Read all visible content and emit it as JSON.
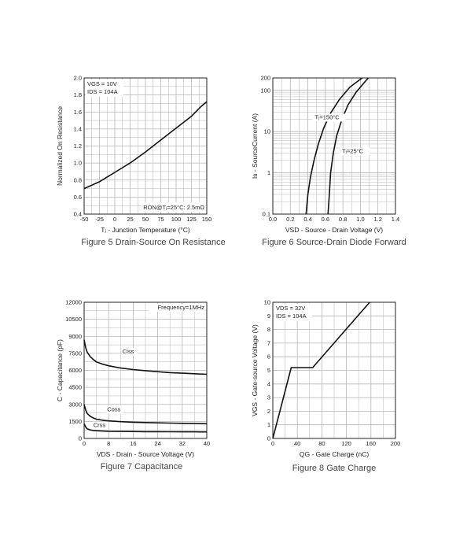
{
  "colors": {
    "background": "#ffffff",
    "curve": "#111111",
    "grid": "#b5b5b5",
    "frame": "#222222"
  },
  "chart_data": [
    {
      "type": "line",
      "figure": "Figure 5",
      "caption": "Figure 5 Drain-Source On Resistance",
      "xlabel": "Tⱼ - Junction Temperature (°C)",
      "ylabel": "Normalized On Resistance",
      "xlim": [
        -50,
        150
      ],
      "ylim": [
        0.4,
        2.0
      ],
      "xticks": [
        -50,
        -25,
        0,
        25,
        50,
        75,
        100,
        125,
        150
      ],
      "xticklabels": [
        "-50",
        "-25",
        "0",
        "25",
        "50",
        "75",
        "100",
        "125",
        "150"
      ],
      "yticks": [
        0.4,
        0.6,
        0.8,
        1.0,
        1.2,
        1.4,
        1.6,
        1.8,
        2.0
      ],
      "yticklabels": [
        "0.4",
        "0.6",
        "0.8",
        "1.0",
        "1.2",
        "1.4",
        "1.6",
        "1.8",
        "2.0"
      ],
      "grid": true,
      "annotations": [
        "VGS = 10V",
        "IDS = 104A",
        "RON@Tⱼ=25°C: 2.5mΩ"
      ],
      "series": [
        {
          "x": [
            -50,
            -25,
            0,
            25,
            50,
            75,
            100,
            125,
            140,
            150
          ],
          "y": [
            0.7,
            0.78,
            0.89,
            1.0,
            1.13,
            1.27,
            1.41,
            1.55,
            1.66,
            1.72
          ]
        }
      ]
    },
    {
      "type": "line",
      "figure": "Figure 6",
      "caption": "Figure 6 Source-Drain Diode Forward",
      "xlabel": "VSD - Source - Drain Voltage (V)",
      "ylabel": "Is - SourceCurrent (A)",
      "xlim": [
        0.0,
        1.4
      ],
      "ylim": [
        0.1,
        200
      ],
      "yscale": "log",
      "xticks": [
        0.0,
        0.2,
        0.4,
        0.6,
        0.8,
        1.0,
        1.2,
        1.4
      ],
      "xticklabels": [
        "0.0",
        "0.2",
        "0.4",
        "0.6",
        "0.8",
        "1.0",
        "1.2",
        "1.4"
      ],
      "yticks": [
        0.1,
        1,
        10,
        100,
        200
      ],
      "yticklabels": [
        "0.1",
        "1",
        "10",
        "100",
        "200"
      ],
      "grid": true,
      "series": [
        {
          "name": "Tⱼ=150°C",
          "x": [
            0.38,
            0.4,
            0.43,
            0.47,
            0.52,
            0.58,
            0.66,
            0.76,
            0.88,
            1.02
          ],
          "y": [
            0.1,
            0.3,
            0.8,
            2,
            5,
            12,
            28,
            60,
            120,
            200
          ]
        },
        {
          "name": "Tⱼ=25°C",
          "x": [
            0.63,
            0.645,
            0.66,
            0.69,
            0.73,
            0.79,
            0.86,
            0.95,
            1.05,
            1.09
          ],
          "y": [
            0.1,
            0.3,
            1,
            3,
            8,
            20,
            45,
            90,
            160,
            200
          ]
        }
      ]
    },
    {
      "type": "line",
      "figure": "Figure 7",
      "caption": "Figure 7 Capacitance",
      "xlabel": "VDS - Drain - Source Voltage (V)",
      "ylabel": "C - Capacitance (pF)",
      "xlim": [
        0,
        40
      ],
      "ylim": [
        0,
        12000
      ],
      "xticks": [
        0,
        8,
        16,
        24,
        32,
        40
      ],
      "xticklabels": [
        "0",
        "8",
        "16",
        "24",
        "32",
        "40"
      ],
      "yticks": [
        0,
        1500,
        3000,
        4500,
        6000,
        7500,
        9000,
        10500,
        12000
      ],
      "yticklabels": [
        "0",
        "1500",
        "3000",
        "4500",
        "6000",
        "7500",
        "9000",
        "10500",
        "12000"
      ],
      "grid": true,
      "annotations": [
        "Frequency=1MHz"
      ],
      "series": [
        {
          "name": "Ciss",
          "x": [
            0,
            0.5,
            1,
            2,
            3,
            4,
            6,
            8,
            12,
            16,
            20,
            24,
            28,
            32,
            36,
            40
          ],
          "y": [
            8700,
            8000,
            7600,
            7200,
            6950,
            6750,
            6550,
            6400,
            6200,
            6070,
            5970,
            5880,
            5800,
            5750,
            5700,
            5650
          ]
        },
        {
          "name": "Coss",
          "x": [
            0,
            0.5,
            1,
            2,
            3,
            4,
            6,
            8,
            12,
            16,
            20,
            24,
            28,
            32,
            36,
            40
          ],
          "y": [
            3000,
            2500,
            2200,
            1950,
            1800,
            1700,
            1600,
            1550,
            1480,
            1430,
            1400,
            1370,
            1350,
            1330,
            1310,
            1300
          ]
        },
        {
          "name": "Crss",
          "x": [
            0,
            0.5,
            1,
            2,
            3,
            4,
            6,
            8,
            12,
            16,
            20,
            24,
            28,
            32,
            36,
            40
          ],
          "y": [
            1300,
            1000,
            850,
            750,
            700,
            680,
            650,
            630,
            620,
            610,
            600,
            595,
            590,
            585,
            580,
            578
          ]
        }
      ]
    },
    {
      "type": "line",
      "figure": "Figure 8",
      "caption": "Figure 8 Gate Charge",
      "xlabel": "QG - Gate Charge (nC)",
      "ylabel": "VGS - Gate-source Voltage (V)",
      "xlim": [
        0,
        200
      ],
      "ylim": [
        0,
        10
      ],
      "xticks": [
        0,
        40,
        80,
        120,
        160,
        200
      ],
      "xticklabels": [
        "0",
        "40",
        "80",
        "120",
        "160",
        "200"
      ],
      "yticks": [
        0,
        1,
        2,
        3,
        4,
        5,
        6,
        7,
        8,
        9,
        10
      ],
      "yticklabels": [
        "0",
        "1",
        "2",
        "3",
        "4",
        "5",
        "6",
        "7",
        "8",
        "9",
        "10"
      ],
      "grid": true,
      "annotations": [
        "VDS = 32V",
        "IDS = 104A"
      ],
      "series": [
        {
          "x": [
            0,
            30,
            65,
            158
          ],
          "y": [
            0,
            5.2,
            5.2,
            10
          ]
        }
      ]
    }
  ]
}
